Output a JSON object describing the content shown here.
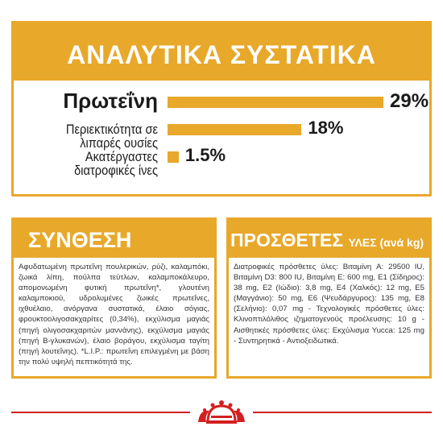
{
  "analytics": {
    "title": "ΑΝΑΛΥΤΙΚΑ ΣΥΣΤΑΤΙΚΑ",
    "rows": [
      {
        "label": "Πρωτεΐνη",
        "value_text": "29%",
        "value": 29
      },
      {
        "label": "Περιεκτικότητα σε λιπαρές ουσίες",
        "value_text": "18%",
        "value": 18
      },
      {
        "label": "Ακατέργαστες διατροφικές ίνες",
        "value_text": "1.5%",
        "value": 1.5
      }
    ]
  },
  "composition": {
    "title": "ΣΥΝΘΕΣΗ",
    "text": "Αφυδατωμένη πρωτεΐνη πουλερικών, ρύζι, καλαμπόκι, ζωικά λίπη, πούλπα τεύτλων, καλαμποκάλευρο, απομονωμένη φυτική πρωτεΐνη*, γλουτένη καλαμποκιού, υδρολυμένες ζωικές πρωτεΐνες, ιχθυέλαιο, ανόργανα συστατικά, έλαιο σόγιας, φρουκτοολιγοσακχαρίτες (0,34%), εκχύλισμα μαγιάς (πηγή ολιγοσακχαριτών μαννάνης), εκχύλισμα μαγιάς (πηγή Β-γλυκανών), έλαιο βοράγου, εκχύλισμα ταγίτη (πηγή λουτεΐνης). *L.I.P.: πρωτεΐνη επιλεγμένη με βάση την πολύ υψηλή πεπτικότητά της."
  },
  "additives": {
    "title": "ΠΡΟΣΘΕΤΕΣ",
    "title_suffix": "ΥΛΕΣ (ανά kg)",
    "text": "Διατροφικές πρόσθετες ύλες: Βιταμίνη A: 29500 IU, Βιταμίνη D3: 800 IU, Βιταμίνη E: 600 mg, E1 (Σίδηρος): 38 mg, E2 (Ιώδιο): 3,8 mg, E4 (Χαλκός): 12 mg, E5 (Μαγγάνιο): 50 mg, E6 (Ψευδάργυρος): 135 mg, E8 (Σελήνιο): 0,07 mg - Τεχνολογικές πρόσθετες ύλες: Κλινοπτιλόλιθος ιζηματογενούς προέλευσης: 10 g - Αισθητικές πρόσθετες ύλες: Εκχύλισμα Yucca: 125 mg - Συντηρητικά - Αντιοξειδωτικά."
  },
  "colors": {
    "accent": "#e8a82a",
    "brand_red": "#d21f1f",
    "text": "#1a1a1a"
  },
  "footer": {
    "logo_icon": "royal-canin-crown-icon"
  }
}
